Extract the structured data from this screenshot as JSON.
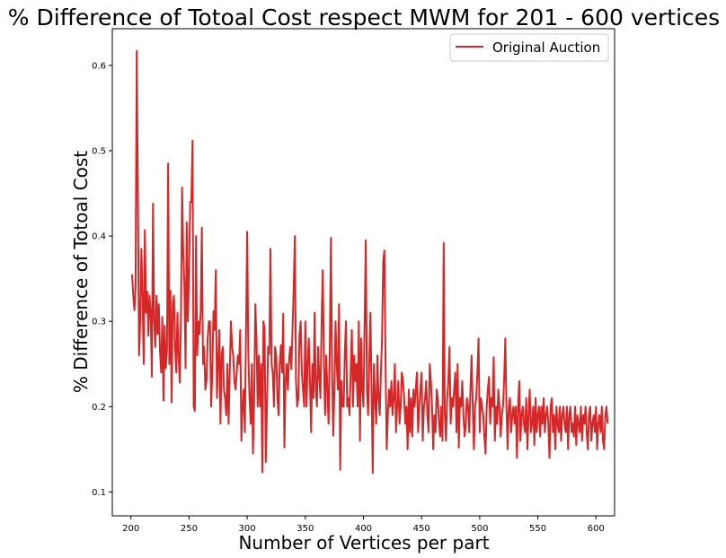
{
  "chart_data": {
    "type": "line",
    "title": "% Difference of Totoal Cost respect MWM for 201 - 600 vertices",
    "xlabel": "Number of Vertices per part",
    "ylabel": "% Difference of Totoal Cost",
    "xlim": [
      184,
      616
    ],
    "ylim": [
      0.072,
      0.643
    ],
    "x_ticks": [
      200,
      250,
      300,
      350,
      400,
      450,
      500,
      550,
      600
    ],
    "x_tick_labels": [
      "200",
      "250",
      "300",
      "350",
      "400",
      "450",
      "500",
      "550",
      "600"
    ],
    "y_ticks": [
      0.1,
      0.2,
      0.3,
      0.4,
      0.5,
      0.6
    ],
    "y_tick_labels": [
      "0.1",
      "0.2",
      "0.3",
      "0.4",
      "0.5",
      "0.6"
    ],
    "grid": false,
    "legend": {
      "position": "top-right",
      "entries": [
        "Original Auction"
      ]
    },
    "series": [
      {
        "name": "Original Auction",
        "color": "#d62728",
        "x_start": 201,
        "x_end": 600,
        "x_step": 1,
        "values": [
          0.355,
          0.33,
          0.313,
          0.34,
          0.617,
          0.45,
          0.26,
          0.3,
          0.385,
          0.33,
          0.25,
          0.407,
          0.31,
          0.335,
          0.283,
          0.33,
          0.31,
          0.235,
          0.438,
          0.3,
          0.27,
          0.33,
          0.285,
          0.32,
          0.265,
          0.24,
          0.305,
          0.207,
          0.295,
          0.245,
          0.265,
          0.485,
          0.25,
          0.336,
          0.205,
          0.32,
          0.33,
          0.27,
          0.24,
          0.31,
          0.26,
          0.228,
          0.3,
          0.457,
          0.38,
          0.345,
          0.245,
          0.416,
          0.3,
          0.36,
          0.44,
          0.44,
          0.512,
          0.2,
          0.195,
          0.4,
          0.26,
          0.3,
          0.285,
          0.31,
          0.41,
          0.25,
          0.27,
          0.22,
          0.23,
          0.28,
          0.3,
          0.3,
          0.2,
          0.24,
          0.312,
          0.29,
          0.36,
          0.21,
          0.25,
          0.29,
          0.18,
          0.26,
          0.27,
          0.22,
          0.21,
          0.19,
          0.25,
          0.18,
          0.24,
          0.3,
          0.27,
          0.26,
          0.23,
          0.22,
          0.24,
          0.26,
          0.25,
          0.29,
          0.16,
          0.2,
          0.22,
          0.17,
          0.29,
          0.405,
          0.26,
          0.21,
          0.18,
          0.25,
          0.145,
          0.21,
          0.32,
          0.28,
          0.2,
          0.26,
          0.2,
          0.25,
          0.123,
          0.3,
          0.29,
          0.135,
          0.2,
          0.27,
          0.262,
          0.385,
          0.25,
          0.24,
          0.2,
          0.27,
          0.26,
          0.21,
          0.19,
          0.25,
          0.272,
          0.24,
          0.309,
          0.152,
          0.23,
          0.25,
          0.22,
          0.255,
          0.27,
          0.244,
          0.29,
          0.339,
          0.4,
          0.23,
          0.2,
          0.21,
          0.285,
          0.3,
          0.24,
          0.22,
          0.2,
          0.3,
          0.2,
          0.25,
          0.28,
          0.23,
          0.17,
          0.25,
          0.21,
          0.31,
          0.22,
          0.2,
          0.27,
          0.235,
          0.21,
          0.298,
          0.36,
          0.25,
          0.19,
          0.26,
          0.22,
          0.18,
          0.26,
          0.398,
          0.25,
          0.166,
          0.22,
          0.3,
          0.25,
          0.22,
          0.32,
          0.126,
          0.23,
          0.2,
          0.2,
          0.265,
          0.3,
          0.2,
          0.21,
          0.19,
          0.24,
          0.29,
          0.2,
          0.26,
          0.23,
          0.25,
          0.2,
          0.3,
          0.16,
          0.28,
          0.22,
          0.2,
          0.3,
          0.395,
          0.22,
          0.19,
          0.25,
          0.31,
          0.22,
          0.122,
          0.25,
          0.21,
          0.18,
          0.26,
          0.21,
          0.19,
          0.24,
          0.28,
          0.37,
          0.383,
          0.25,
          0.15,
          0.19,
          0.22,
          0.2,
          0.23,
          0.19,
          0.21,
          0.25,
          0.17,
          0.2,
          0.23,
          0.18,
          0.2,
          0.24,
          0.23,
          0.21,
          0.18,
          0.2,
          0.15,
          0.22,
          0.17,
          0.21,
          0.165,
          0.22,
          0.2,
          0.22,
          0.24,
          0.17,
          0.2,
          0.22,
          0.24,
          0.16,
          0.2,
          0.21,
          0.23,
          0.19,
          0.17,
          0.25,
          0.23,
          0.2,
          0.15,
          0.19,
          0.17,
          0.22,
          0.21,
          0.18,
          0.165,
          0.2,
          0.16,
          0.392,
          0.19,
          0.16,
          0.21,
          0.23,
          0.27,
          0.18,
          0.21,
          0.2,
          0.22,
          0.24,
          0.17,
          0.25,
          0.152,
          0.21,
          0.2,
          0.23,
          0.19,
          0.165,
          0.18,
          0.21,
          0.2,
          0.17,
          0.22,
          0.26,
          0.2,
          0.15,
          0.2,
          0.21,
          0.24,
          0.28,
          0.17,
          0.21,
          0.2,
          0.19,
          0.165,
          0.145,
          0.2,
          0.22,
          0.235,
          0.18,
          0.21,
          0.2,
          0.258,
          0.16,
          0.2,
          0.18,
          0.22,
          0.2,
          0.165,
          0.19,
          0.2,
          0.23,
          0.28,
          0.2,
          0.15,
          0.2,
          0.21,
          0.17,
          0.19,
          0.2,
          0.18,
          0.2,
          0.14,
          0.2,
          0.23,
          0.16,
          0.19,
          0.2,
          0.18,
          0.17,
          0.21,
          0.15,
          0.19,
          0.22,
          0.17,
          0.18,
          0.2,
          0.155,
          0.21,
          0.17,
          0.19,
          0.2,
          0.165,
          0.2,
          0.18,
          0.21,
          0.17,
          0.19,
          0.2,
          0.18,
          0.14,
          0.2,
          0.21,
          0.17,
          0.19,
          0.15,
          0.2,
          0.18,
          0.17,
          0.2,
          0.16,
          0.19,
          0.2,
          0.18,
          0.17,
          0.2,
          0.15,
          0.19,
          0.2,
          0.17,
          0.18,
          0.165,
          0.2,
          0.155,
          0.19,
          0.18,
          0.17,
          0.2,
          0.16,
          0.19,
          0.18,
          0.2,
          0.17,
          0.15,
          0.19,
          0.2,
          0.16,
          0.18,
          0.19,
          0.17,
          0.2,
          0.15,
          0.18,
          0.19,
          0.17,
          0.2,
          0.16,
          0.15,
          0.19,
          0.2,
          0.18
        ]
      }
    ]
  }
}
